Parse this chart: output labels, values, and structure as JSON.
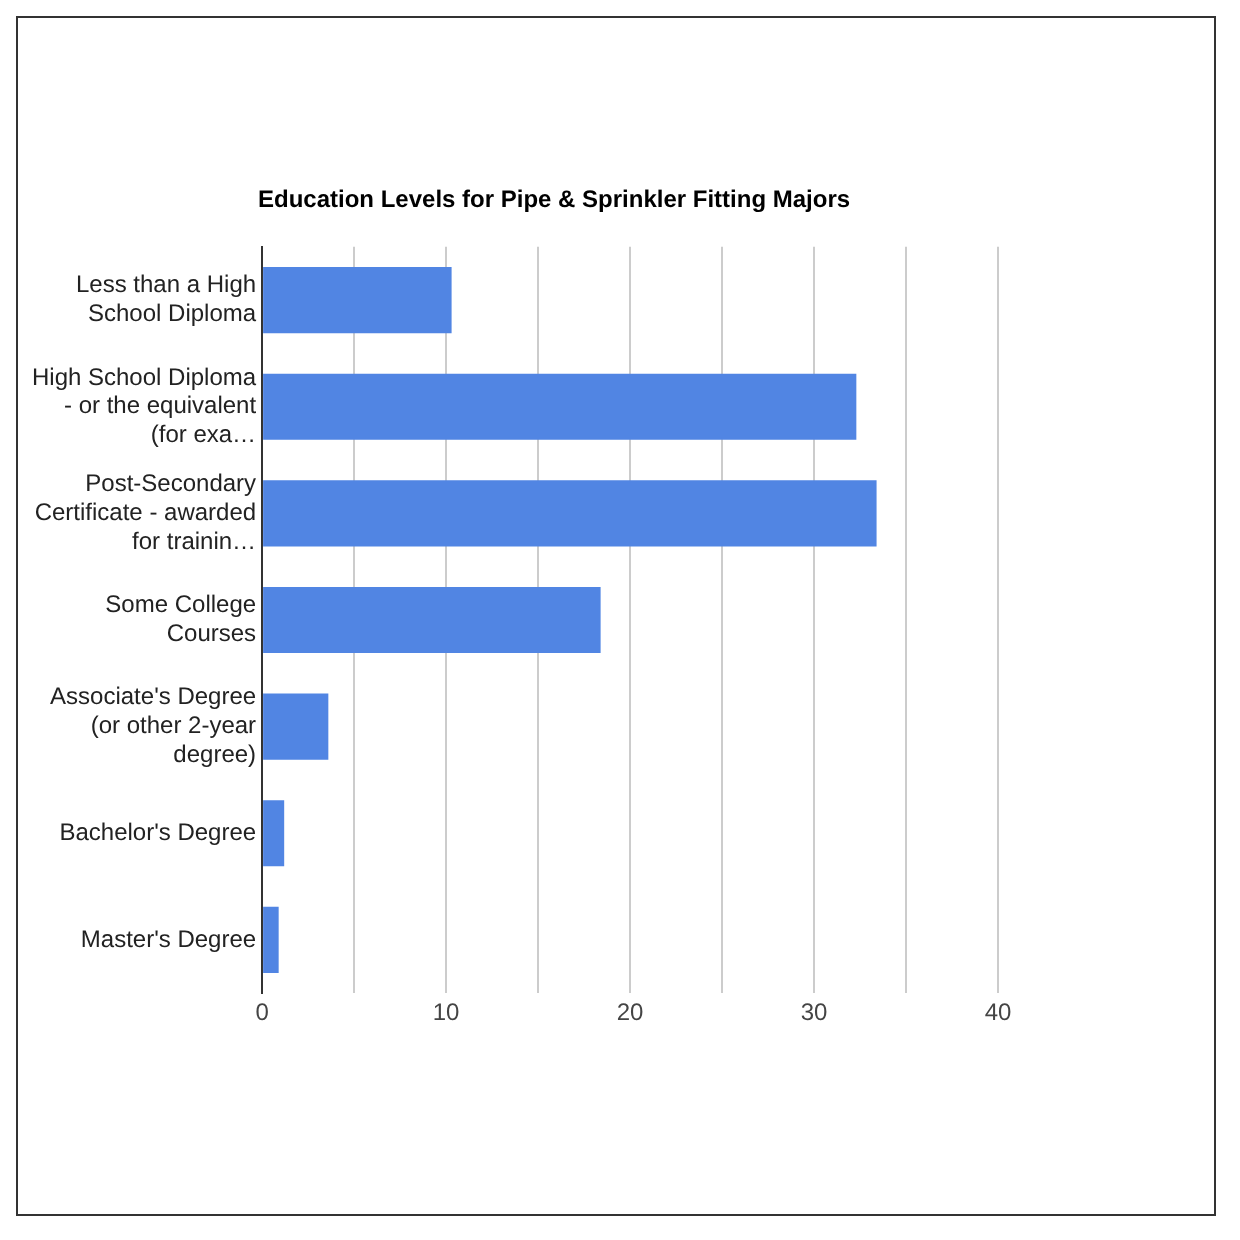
{
  "chart_data": {
    "type": "bar",
    "orientation": "horizontal",
    "title": "Education Levels for Pipe & Sprinkler Fitting Majors",
    "categories": [
      "Less than a High School Diploma",
      "High School Diploma - or the equivalent (for exa…",
      "Post-Secondary Certificate - awarded for trainin…",
      "Some College Courses",
      "Associate's Degree (or other 2-year degree)",
      "Bachelor's Degree",
      "Master's Degree"
    ],
    "values": [
      10.3,
      32.3,
      33.4,
      18.4,
      3.6,
      1.2,
      0.9
    ],
    "color": "#5185e3",
    "xlim": [
      0,
      40
    ],
    "xticks": [
      0,
      {
        "value": 5,
        "label": null
      },
      10,
      {
        "value": 15,
        "label": null
      },
      20,
      {
        "value": 25,
        "label": null
      },
      30,
      {
        "value": 35,
        "label": null
      },
      40
    ],
    "grid": "x",
    "legend": false
  }
}
